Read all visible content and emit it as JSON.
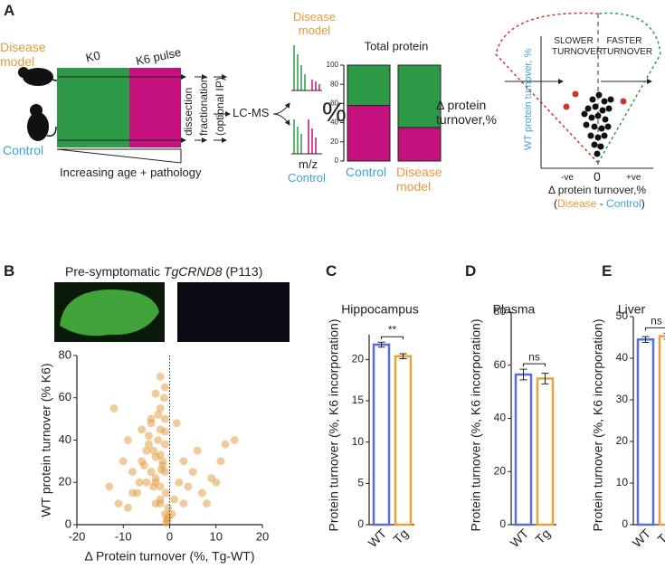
{
  "panel_labels": [
    "A",
    "B",
    "C",
    "D",
    "E"
  ],
  "schematic": {
    "disease_model": "Disease model",
    "control": "Control",
    "k0": "K0",
    "k6_pulse": "K6 pulse",
    "dissection": "dissection",
    "fractionation": "fractionation",
    "optional_ip": "(optional IP)",
    "lc_ms": "LC-MS",
    "spectra_disease": "Disease model",
    "mz": "m/z",
    "spectra_control": "Control",
    "percent": "%",
    "delta_turnover": "Δ protein turnover,%",
    "age": "Increasing age + pathology",
    "cone": {
      "slower": "SLOWER TURNOVER",
      "faster": "FASTER TURNOVER",
      "y_label": "WT protein turnover, %",
      "neg": "-ve",
      "zero": "0",
      "pos": "+ve",
      "x_label": "Δ protein turnover,%",
      "x_sub": [
        "(",
        "Disease",
        " - ",
        "Control",
        ")"
      ]
    }
  },
  "panel_b_header": [
    "Pre-symptomatic",
    "TgCRND8",
    "(P113)"
  ],
  "chart_data": [
    {
      "type": "stacked_bar",
      "title": "Total protein",
      "categories": [
        "Control",
        "Disease model"
      ],
      "series": [
        {
          "color": "#c5117e",
          "values": [
            58,
            35
          ]
        },
        {
          "color": "#2e9a47",
          "values": [
            42,
            65
          ]
        }
      ],
      "ylim": [
        0,
        100
      ],
      "yticks": [
        0,
        20,
        40,
        60,
        80,
        100
      ]
    },
    {
      "type": "scatter",
      "x_label": "Δ Protein turnover (%, Tg-WT)",
      "y_label": "WT protein turnover (% K6)",
      "color": "#e4a14a",
      "xlim": [
        -20,
        20
      ],
      "xticks": [
        -20,
        -10,
        0,
        10,
        20
      ],
      "ylim": [
        0,
        80
      ],
      "yticks": [
        0,
        20,
        40,
        60,
        80
      ],
      "x": [
        -1,
        -2,
        -3,
        -0.5,
        -1.5,
        -4,
        -2.5,
        -3.5,
        -1,
        -0.8,
        -5,
        -6,
        -2,
        -1.2,
        -0.3,
        -7,
        -3,
        -2,
        -1,
        -4.5,
        -8,
        -10,
        -12,
        -11,
        -9,
        -6.5,
        -5.5,
        -4,
        -3,
        -2,
        -1,
        -0.5,
        0.5,
        1,
        2,
        3,
        4,
        5,
        6,
        7,
        8,
        10,
        12,
        14,
        11,
        9,
        -2,
        -3,
        -1.5,
        -4,
        -6,
        -8,
        -5,
        -3,
        -2,
        -1,
        -0.7,
        -13,
        -9,
        -2.5,
        1.5,
        3,
        -1,
        -2,
        -3.5,
        -4.5,
        -0.2,
        -1.8
      ],
      "y": [
        5,
        10,
        20,
        2,
        30,
        25,
        40,
        35,
        50,
        15,
        20,
        30,
        45,
        60,
        8,
        15,
        10,
        55,
        38,
        42,
        25,
        30,
        55,
        10,
        40,
        20,
        28,
        48,
        62,
        70,
        65,
        3,
        5,
        12,
        20,
        30,
        18,
        25,
        35,
        15,
        10,
        20,
        38,
        40,
        30,
        22,
        18,
        32,
        28,
        50,
        45,
        15,
        35,
        22,
        12,
        25,
        1,
        18,
        8,
        52,
        48,
        10,
        44,
        33,
        18,
        38,
        4,
        26
      ]
    },
    {
      "type": "bar",
      "title": "Hippocampus",
      "y_label": "Protein turnover (%, K6 incorporation)",
      "categories": [
        "WT",
        "Tg"
      ],
      "values": [
        21.8,
        20.4
      ],
      "errors": [
        0.3,
        0.3
      ],
      "colors": [
        "#5a6fd8",
        "#e9a23b"
      ],
      "annotation": "**",
      "ylim": [
        0,
        23
      ],
      "yticks": [
        0,
        5,
        10,
        15,
        20
      ]
    },
    {
      "type": "bar",
      "title": "Plasma",
      "y_label": "Protein turnover (%, K6 incorporation)",
      "categories": [
        "WT",
        "Tg"
      ],
      "values": [
        56.5,
        55
      ],
      "errors": [
        2,
        2
      ],
      "colors": [
        "#5a6fd8",
        "#e9a23b"
      ],
      "annotation": "ns",
      "ylim": [
        0,
        80
      ],
      "yticks": [
        0,
        20,
        40,
        60,
        80
      ]
    },
    {
      "type": "bar",
      "title": "Liver",
      "y_label": "Protein turnover (%, K6 incorporation)",
      "categories": [
        "WT",
        "Tg"
      ],
      "values": [
        44.5,
        45.3
      ],
      "errors": [
        0.7,
        0.7
      ],
      "colors": [
        "#5a6fd8",
        "#e9a23b"
      ],
      "annotation": "ns",
      "ylim": [
        0,
        50
      ],
      "yticks": [
        0,
        10,
        20,
        30,
        40,
        50
      ]
    }
  ]
}
